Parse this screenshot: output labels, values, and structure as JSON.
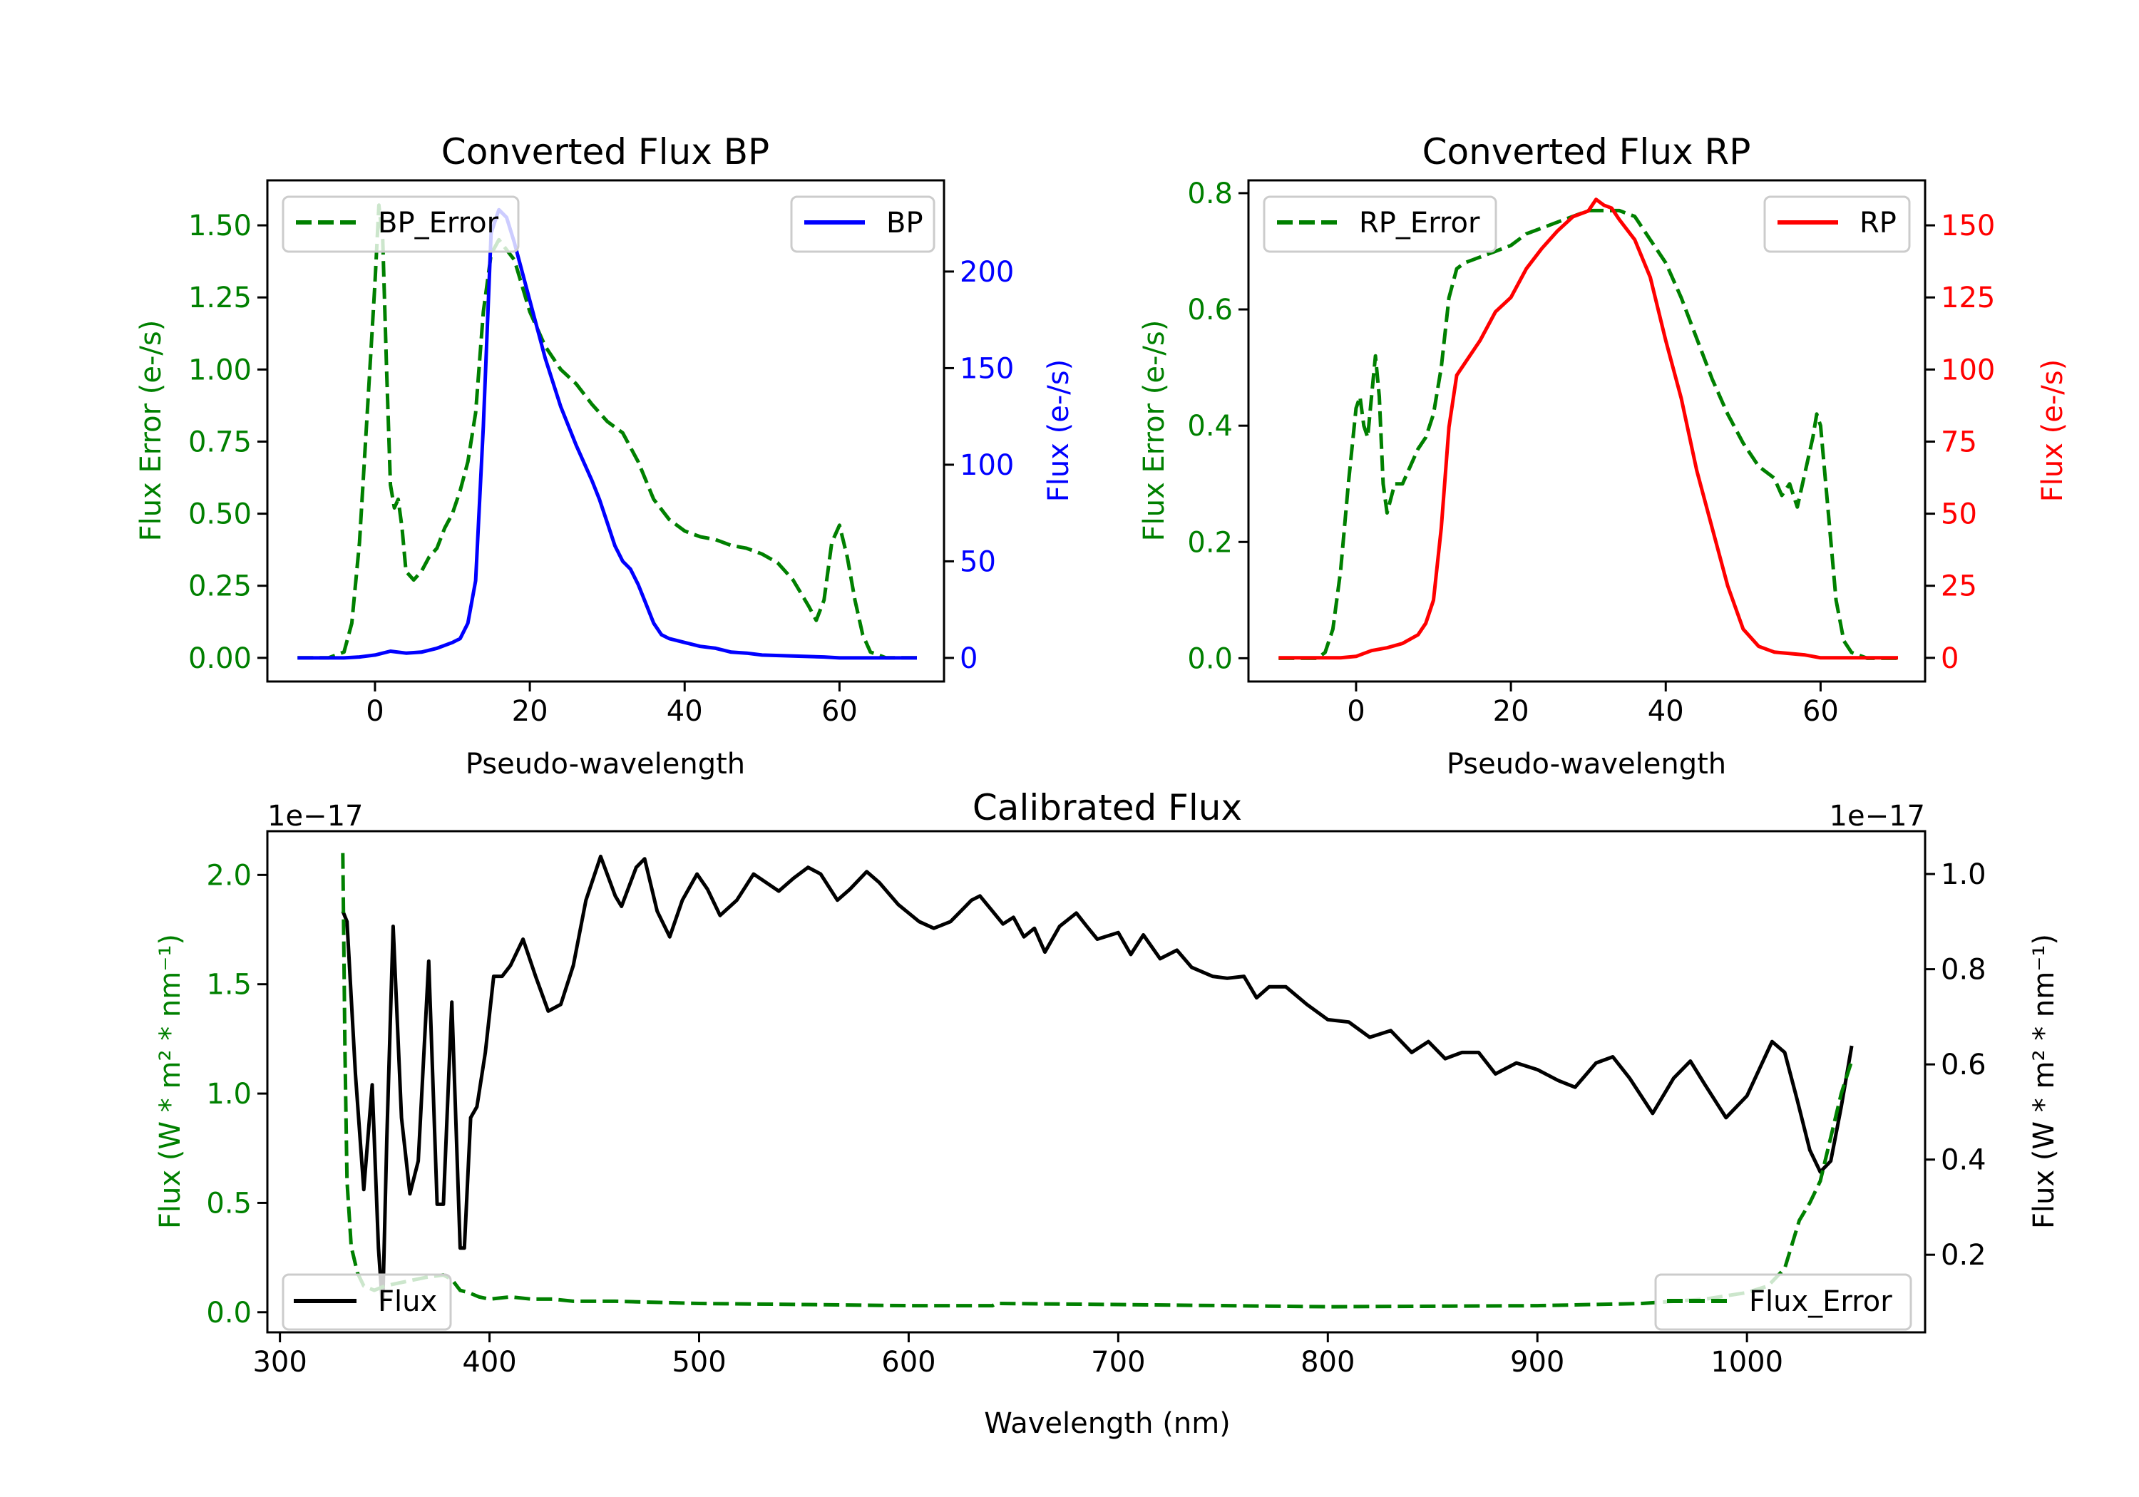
{
  "chart_data": [
    {
      "type": "line",
      "id": "bp",
      "title": "Converted Flux BP",
      "xlabel": "Pseudo-wavelength",
      "xlim": [
        -13.9,
        73.5
      ],
      "xticks": [
        0,
        20,
        40,
        60
      ],
      "grid": false,
      "left_axis": {
        "label": "Flux Error (e-/s)",
        "color": "#008000",
        "ylim": [
          -0.082,
          1.656
        ],
        "ticks": [
          0.0,
          0.25,
          0.5,
          0.75,
          1.0,
          1.25,
          1.5
        ],
        "tick_labels": [
          "0.00",
          "0.25",
          "0.50",
          "0.75",
          "1.00",
          "1.25",
          "1.50"
        ]
      },
      "right_axis": {
        "label": "Flux (e-/s)",
        "color": "#0000ff",
        "ylim": [
          -12.2,
          247.2
        ],
        "ticks": [
          0,
          50,
          100,
          150,
          200
        ],
        "tick_labels": [
          "0",
          "50",
          "100",
          "150",
          "200"
        ]
      },
      "series": [
        {
          "name": "BP_Error",
          "axis": "left",
          "color": "#008000",
          "style": "dashed",
          "x": [
            -10,
            -6,
            -4,
            -3,
            -2,
            -1,
            0,
            0.5,
            1,
            1.5,
            2,
            2.5,
            3,
            3.5,
            4,
            5,
            6,
            7,
            8,
            9,
            10,
            11,
            12,
            13,
            14,
            15,
            16,
            18,
            20,
            22,
            24,
            26,
            28,
            30,
            32,
            34,
            36,
            38,
            40,
            42,
            44,
            46,
            48,
            50,
            52,
            54,
            56,
            57,
            58,
            59,
            60,
            61,
            62,
            63,
            64,
            66,
            70
          ],
          "y": [
            0,
            0,
            0.02,
            0.12,
            0.4,
            0.85,
            1.3,
            1.57,
            1.45,
            1.0,
            0.6,
            0.52,
            0.55,
            0.45,
            0.3,
            0.27,
            0.3,
            0.35,
            0.38,
            0.45,
            0.5,
            0.58,
            0.68,
            0.85,
            1.2,
            1.4,
            1.45,
            1.38,
            1.2,
            1.08,
            1.0,
            0.95,
            0.88,
            0.82,
            0.78,
            0.68,
            0.55,
            0.48,
            0.44,
            0.42,
            0.41,
            0.39,
            0.38,
            0.36,
            0.33,
            0.27,
            0.18,
            0.13,
            0.2,
            0.4,
            0.46,
            0.35,
            0.2,
            0.08,
            0.02,
            0,
            0
          ]
        },
        {
          "name": "BP",
          "axis": "right",
          "color": "#0000ff",
          "style": "solid",
          "x": [
            -10,
            -4,
            -2,
            0,
            2,
            4,
            6,
            8,
            10,
            11,
            12,
            13,
            14,
            15,
            16,
            17,
            18,
            20,
            22,
            24,
            26,
            28,
            29,
            30,
            31,
            32,
            33,
            34,
            35,
            36,
            37,
            38,
            40,
            42,
            44,
            46,
            48,
            50,
            54,
            58,
            60,
            70
          ],
          "y": [
            0,
            0,
            0.5,
            1.5,
            3.5,
            2.5,
            3,
            5,
            8,
            10,
            18,
            40,
            120,
            220,
            232,
            228,
            215,
            185,
            155,
            130,
            110,
            92,
            82,
            70,
            58,
            50,
            46,
            38,
            28,
            18,
            12,
            10,
            8,
            6,
            5,
            3,
            2.5,
            1.5,
            1,
            0.5,
            0,
            0
          ]
        }
      ],
      "legends": [
        {
          "entries": [
            "BP_Error"
          ],
          "placement": "upper-left"
        },
        {
          "entries": [
            "BP"
          ],
          "placement": "upper-right"
        }
      ]
    },
    {
      "type": "line",
      "id": "rp",
      "title": "Converted Flux RP",
      "xlabel": "Pseudo-wavelength",
      "xlim": [
        -13.9,
        73.5
      ],
      "xticks": [
        0,
        20,
        40,
        60
      ],
      "grid": false,
      "left_axis": {
        "label": "Flux Error (e-/s)",
        "color": "#008000",
        "ylim": [
          -0.04,
          0.822
        ],
        "ticks": [
          0.0,
          0.2,
          0.4,
          0.6,
          0.8
        ],
        "tick_labels": [
          "0.0",
          "0.2",
          "0.4",
          "0.6",
          "0.8"
        ]
      },
      "right_axis": {
        "label": "Flux (e-/s)",
        "color": "#ff0000",
        "ylim": [
          -8.2,
          165.6
        ],
        "ticks": [
          0,
          25,
          50,
          75,
          100,
          125,
          150
        ],
        "tick_labels": [
          "0",
          "25",
          "50",
          "75",
          "100",
          "125",
          "150"
        ]
      },
      "series": [
        {
          "name": "RP_Error",
          "axis": "left",
          "color": "#008000",
          "style": "dashed",
          "x": [
            -10,
            -5,
            -4,
            -3,
            -2,
            -1,
            0,
            0.5,
            1,
            1.5,
            2,
            2.5,
            3,
            3.5,
            4,
            5,
            6,
            7,
            8,
            9,
            10,
            11,
            12,
            13,
            14,
            16,
            18,
            20,
            22,
            24,
            26,
            28,
            30,
            32,
            34,
            36,
            38,
            40,
            42,
            44,
            46,
            48,
            50,
            52,
            54,
            55,
            56,
            57,
            58,
            59,
            59.5,
            60,
            61,
            62,
            63,
            64,
            66,
            70
          ],
          "y": [
            0,
            0,
            0.01,
            0.05,
            0.15,
            0.3,
            0.43,
            0.45,
            0.4,
            0.38,
            0.45,
            0.52,
            0.45,
            0.3,
            0.25,
            0.3,
            0.3,
            0.33,
            0.36,
            0.38,
            0.42,
            0.5,
            0.62,
            0.67,
            0.68,
            0.69,
            0.7,
            0.71,
            0.73,
            0.74,
            0.75,
            0.76,
            0.77,
            0.77,
            0.77,
            0.76,
            0.72,
            0.68,
            0.62,
            0.55,
            0.48,
            0.42,
            0.37,
            0.33,
            0.31,
            0.28,
            0.3,
            0.26,
            0.32,
            0.38,
            0.42,
            0.4,
            0.25,
            0.1,
            0.03,
            0.01,
            0,
            0
          ]
        },
        {
          "name": "RP",
          "axis": "right",
          "color": "#ff0000",
          "style": "solid",
          "x": [
            -10,
            -2,
            0,
            2,
            4,
            6,
            8,
            9,
            10,
            11,
            12,
            13,
            14,
            16,
            18,
            20,
            22,
            24,
            26,
            28,
            30,
            31,
            32,
            33,
            34,
            36,
            38,
            40,
            42,
            44,
            46,
            48,
            50,
            52,
            54,
            56,
            58,
            60,
            70
          ],
          "y": [
            0,
            0,
            0.5,
            2.5,
            3.5,
            5,
            8,
            12,
            20,
            45,
            80,
            98,
            102,
            110,
            120,
            125,
            135,
            142,
            148,
            153,
            155,
            159,
            157,
            156,
            152,
            145,
            132,
            110,
            90,
            65,
            45,
            25,
            10,
            4,
            2,
            1.5,
            1,
            0,
            0
          ]
        }
      ],
      "legends": [
        {
          "entries": [
            "RP_Error"
          ],
          "placement": "upper-left"
        },
        {
          "entries": [
            "RP"
          ],
          "placement": "upper-right"
        }
      ]
    },
    {
      "type": "line",
      "id": "cal",
      "title": "Calibrated Flux",
      "xlabel": "Wavelength (nm)",
      "xlim": [
        294,
        1085
      ],
      "xticks": [
        300,
        400,
        500,
        600,
        700,
        800,
        900,
        1000
      ],
      "grid": false,
      "left_axis": {
        "label": "Flux (W * m² * nm⁻¹)",
        "color": "#008000",
        "offset_text": "1e−17",
        "ylim": [
          -0.092,
          2.2
        ],
        "ticks": [
          0.0,
          0.5,
          1.0,
          1.5,
          2.0
        ],
        "tick_labels": [
          "0.0",
          "0.5",
          "1.0",
          "1.5",
          "2.0"
        ]
      },
      "right_axis": {
        "label": "Flux (W * m² * nm⁻¹)",
        "color": "#000000",
        "offset_text": "1e−17",
        "ylim": [
          0.037,
          1.09
        ],
        "ticks": [
          0.2,
          0.4,
          0.6,
          0.8,
          1.0
        ],
        "tick_labels": [
          "0.2",
          "0.4",
          "0.6",
          "0.8",
          "1.0"
        ]
      },
      "series": [
        {
          "name": "Flux",
          "axis": "right",
          "color": "#000000",
          "style": "solid",
          "x": [
            330,
            332,
            336,
            340,
            344,
            347,
            349,
            351,
            354,
            358,
            362,
            366,
            371,
            375,
            378,
            382,
            386,
            388,
            391,
            394,
            398,
            402,
            406,
            410,
            416,
            422,
            428,
            434,
            440,
            446,
            453,
            460,
            463,
            470,
            474,
            480,
            486,
            492,
            499,
            504,
            510,
            518,
            526,
            532,
            538,
            545,
            552,
            558,
            566,
            572,
            580,
            586,
            595,
            605,
            612,
            620,
            630,
            634,
            640,
            645,
            650,
            655,
            660,
            665,
            672,
            680,
            685,
            690,
            700,
            706,
            712,
            720,
            728,
            735,
            745,
            752,
            760,
            766,
            772,
            780,
            790,
            800,
            810,
            820,
            830,
            840,
            848,
            856,
            864,
            872,
            880,
            890,
            900,
            910,
            918,
            928,
            936,
            944,
            955,
            965,
            973,
            980,
            990,
            1000,
            1012,
            1018,
            1024,
            1030,
            1035,
            1040,
            1045,
            1050
          ],
          "y": [
            0.922,
            0.9,
            0.58,
            0.337,
            0.557,
            0.214,
            0.086,
            0.443,
            0.89,
            0.488,
            0.328,
            0.397,
            0.817,
            0.306,
            0.306,
            0.731,
            0.214,
            0.214,
            0.488,
            0.511,
            0.625,
            0.785,
            0.785,
            0.808,
            0.863,
            0.785,
            0.712,
            0.726,
            0.808,
            0.945,
            1.037,
            0.954,
            0.932,
            1.014,
            1.032,
            0.922,
            0.868,
            0.945,
            1.0,
            0.968,
            0.913,
            0.945,
            1.0,
            0.982,
            0.964,
            0.991,
            1.014,
            1.0,
            0.945,
            0.968,
            1.005,
            0.982,
            0.936,
            0.9,
            0.886,
            0.9,
            0.945,
            0.954,
            0.922,
            0.895,
            0.909,
            0.868,
            0.886,
            0.836,
            0.89,
            0.918,
            0.89,
            0.863,
            0.877,
            0.831,
            0.872,
            0.822,
            0.84,
            0.804,
            0.785,
            0.781,
            0.785,
            0.74,
            0.763,
            0.763,
            0.726,
            0.694,
            0.689,
            0.657,
            0.671,
            0.625,
            0.648,
            0.612,
            0.625,
            0.625,
            0.58,
            0.603,
            0.589,
            0.566,
            0.552,
            0.603,
            0.616,
            0.571,
            0.497,
            0.571,
            0.607,
            0.557,
            0.488,
            0.534,
            0.648,
            0.625,
            0.525,
            0.42,
            0.374,
            0.397,
            0.511,
            0.639
          ]
        },
        {
          "name": "Flux_Error",
          "axis": "left",
          "color": "#008000",
          "style": "dashed",
          "x": [
            330,
            331,
            332,
            334,
            337,
            340,
            345,
            350,
            360,
            370,
            378,
            382,
            386,
            390,
            395,
            400,
            410,
            420,
            430,
            440,
            460,
            500,
            550,
            600,
            640,
            642,
            700,
            800,
            900,
            950,
            980,
            1000,
            1010,
            1018,
            1025,
            1030,
            1035,
            1040,
            1045,
            1050
          ],
          "y": [
            2.1,
            1.2,
            0.6,
            0.3,
            0.18,
            0.12,
            0.1,
            0.12,
            0.14,
            0.16,
            0.17,
            0.15,
            0.1,
            0.09,
            0.07,
            0.06,
            0.07,
            0.06,
            0.06,
            0.05,
            0.05,
            0.04,
            0.035,
            0.03,
            0.03,
            0.04,
            0.035,
            0.025,
            0.03,
            0.04,
            0.06,
            0.09,
            0.12,
            0.2,
            0.42,
            0.5,
            0.6,
            0.8,
            1.0,
            1.15
          ]
        }
      ],
      "legends": [
        {
          "entries": [
            "Flux"
          ],
          "placement": "lower-left"
        },
        {
          "entries": [
            "Flux_Error"
          ],
          "placement": "lower-right"
        }
      ]
    }
  ]
}
